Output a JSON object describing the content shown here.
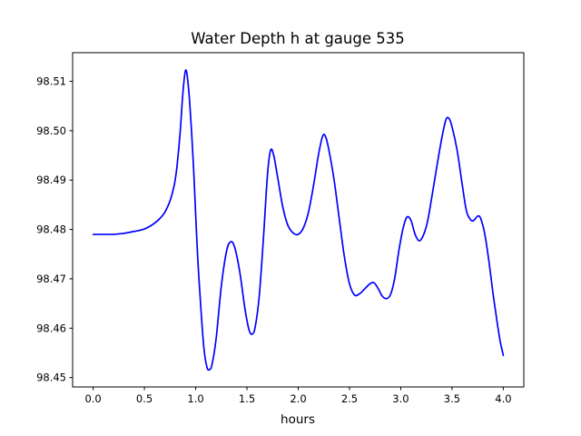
{
  "figure": {
    "background": "#ffffff",
    "frame_color": "#000000"
  },
  "chart_data": {
    "type": "line",
    "title": "Water Depth h at gauge 535",
    "xlabel": "hours",
    "ylabel": "",
    "grid": false,
    "legend_position": "none",
    "line_color": "#0000ff",
    "line_width": 1.7,
    "xlim": [
      -0.2,
      4.2
    ],
    "ylim": [
      98.4481,
      98.5158
    ],
    "xtick_values": [
      0.0,
      0.5,
      1.0,
      1.5,
      2.0,
      2.5,
      3.0,
      3.5,
      4.0
    ],
    "xtick_labels": [
      "0.0",
      "0.5",
      "1.0",
      "1.5",
      "2.0",
      "2.5",
      "3.0",
      "3.5",
      "4.0"
    ],
    "ytick_values": [
      98.45,
      98.46,
      98.47,
      98.48,
      98.49,
      98.5,
      98.51
    ],
    "ytick_labels": [
      "98.45",
      "98.46",
      "98.47",
      "98.48",
      "98.49",
      "98.50",
      "98.51"
    ],
    "series": [
      {
        "name": "h",
        "x": [
          0.0,
          0.05,
          0.1,
          0.15,
          0.2,
          0.25,
          0.3,
          0.35,
          0.4,
          0.45,
          0.5,
          0.55,
          0.6,
          0.65,
          0.7,
          0.75,
          0.78,
          0.8,
          0.82,
          0.85,
          0.87,
          0.89,
          0.905,
          0.92,
          0.94,
          0.96,
          0.98,
          1.0,
          1.02,
          1.05,
          1.08,
          1.11,
          1.135,
          1.16,
          1.2,
          1.25,
          1.3,
          1.34,
          1.38,
          1.43,
          1.48,
          1.52,
          1.55,
          1.58,
          1.62,
          1.66,
          1.7,
          1.73,
          1.76,
          1.8,
          1.85,
          1.9,
          1.95,
          2.0,
          2.05,
          2.1,
          2.15,
          2.2,
          2.24,
          2.27,
          2.3,
          2.35,
          2.4,
          2.45,
          2.5,
          2.55,
          2.6,
          2.65,
          2.7,
          2.74,
          2.78,
          2.82,
          2.86,
          2.9,
          2.94,
          2.98,
          3.02,
          3.06,
          3.1,
          3.14,
          3.18,
          3.22,
          3.26,
          3.3,
          3.35,
          3.4,
          3.44,
          3.47,
          3.5,
          3.55,
          3.6,
          3.64,
          3.68,
          3.71,
          3.75,
          3.78,
          3.82,
          3.86,
          3.9,
          3.94,
          3.97,
          4.0
        ],
        "y": [
          98.479,
          98.479,
          98.479,
          98.479,
          98.479,
          98.4791,
          98.4792,
          98.4794,
          98.4796,
          98.4798,
          98.4801,
          98.4806,
          98.4813,
          98.4822,
          98.4835,
          98.4858,
          98.488,
          98.49,
          98.4932,
          98.5,
          98.5062,
          98.5108,
          98.5123,
          98.5107,
          98.5062,
          98.4998,
          98.4922,
          98.483,
          98.4742,
          98.4643,
          98.456,
          98.4521,
          98.4516,
          98.4527,
          98.458,
          98.4685,
          98.4755,
          98.4775,
          98.4764,
          98.4714,
          98.464,
          98.4597,
          98.4588,
          98.4602,
          98.4665,
          98.478,
          98.491,
          98.496,
          98.4951,
          98.4905,
          98.4845,
          98.4808,
          98.4793,
          98.479,
          98.4803,
          98.4835,
          98.489,
          98.4954,
          98.499,
          98.4986,
          98.496,
          98.49,
          98.4822,
          98.4745,
          98.469,
          98.4667,
          98.467,
          98.468,
          98.469,
          98.4692,
          98.468,
          98.4665,
          98.466,
          98.4668,
          98.47,
          98.4755,
          98.48,
          98.4825,
          98.4818,
          98.479,
          98.4777,
          98.4788,
          98.4815,
          98.4862,
          98.4925,
          98.4985,
          98.5022,
          98.5025,
          98.5008,
          98.496,
          98.489,
          98.4838,
          98.482,
          98.4818,
          98.4827,
          98.4822,
          98.479,
          98.4735,
          98.467,
          98.4612,
          98.4573,
          98.4545
        ]
      }
    ]
  }
}
